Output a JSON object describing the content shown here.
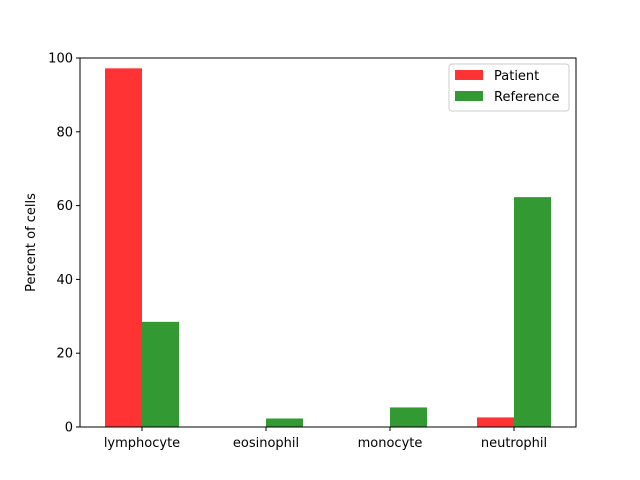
{
  "chart_data": {
    "type": "bar",
    "categories": [
      "lymphocyte",
      "eosinophil",
      "monocyte",
      "neutrophil"
    ],
    "series": [
      {
        "name": "Patient",
        "values": [
          97.2,
          0,
          0,
          2.6
        ],
        "color": "#ff3333"
      },
      {
        "name": "Reference",
        "values": [
          28.5,
          2.3,
          5.3,
          62.3
        ],
        "color": "#339933"
      }
    ],
    "ylabel": "Percent of cells",
    "xlabel": "",
    "ylim": [
      0,
      100
    ],
    "yticks": [
      "0",
      "20",
      "40",
      "60",
      "80",
      "100"
    ],
    "grid": false,
    "legend_position": "top-right"
  }
}
